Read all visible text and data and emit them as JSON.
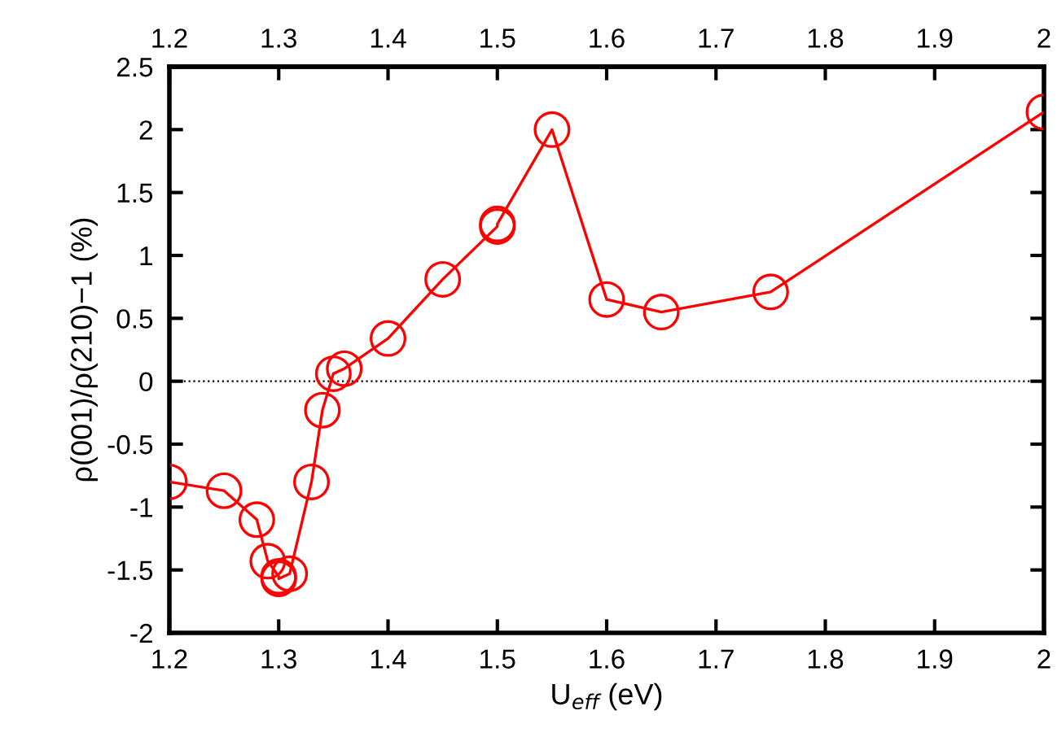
{
  "chart_data": {
    "type": "line",
    "xlabel": "U$_{eff}$ (eV)",
    "ylabel": "ρ(001)/ρ(210)−1 (%)",
    "series": [
      {
        "color": "#ff0000",
        "x": [
          1.2,
          1.25,
          1.28,
          1.29,
          1.3,
          1.3,
          1.31,
          1.33,
          1.34,
          1.35,
          1.36,
          1.4,
          1.45,
          1.5,
          1.5,
          1.55,
          1.6,
          1.65,
          1.75,
          2.0
        ],
        "values": [
          -0.8,
          -0.87,
          -1.1,
          -1.43,
          -1.55,
          -1.57,
          -1.53,
          -0.8,
          -0.23,
          0.06,
          0.1,
          0.34,
          0.81,
          1.23,
          1.25,
          2.0,
          0.65,
          0.55,
          0.71,
          2.14
        ]
      }
    ],
    "marker": "circle",
    "line_style": "solid",
    "xlim": [
      1.2,
      2.0
    ],
    "xticks": [
      1.2,
      1.3,
      1.4,
      1.5,
      1.6,
      1.7,
      1.8,
      1.9,
      2
    ],
    "x2lim": [
      1.2,
      2.0
    ],
    "x2ticks": [
      1.2,
      1.3,
      1.4,
      1.5,
      1.6,
      1.7,
      1.8,
      1.9,
      2
    ],
    "ylim": [
      -2,
      2.5
    ],
    "yticks": [
      -2,
      -1.5,
      -1,
      -0.5,
      0,
      0.5,
      1,
      1.5,
      2,
      2.5
    ],
    "ref_lines": [
      {
        "axis": "y",
        "value": 0,
        "color": "#000000",
        "line_style": "dotted"
      }
    ],
    "grid": false,
    "legend": false
  }
}
